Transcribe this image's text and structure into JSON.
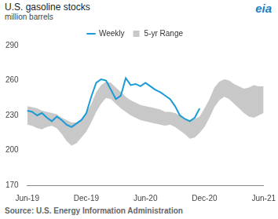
{
  "logo": "eia",
  "chart_data": {
    "type": "line",
    "title": "U.S. gasoline stocks",
    "subtitle": "million barrels",
    "source": "Source: U.S. Energy Information Administration",
    "categories": [
      "Jun-19",
      null,
      null,
      null,
      null,
      null,
      null,
      null,
      null,
      null,
      null,
      null,
      "Dec-19",
      null,
      null,
      null,
      null,
      null,
      null,
      null,
      null,
      null,
      null,
      null,
      "Jun-20",
      null,
      null,
      null,
      null,
      null,
      null,
      null,
      null,
      null,
      null,
      null,
      "Dec-20",
      null,
      null,
      null,
      null,
      null,
      null,
      null,
      null,
      null,
      null,
      null,
      "Jun-21"
    ],
    "series": [
      {
        "name": "5-yr Range",
        "color": "#c8c8c8",
        "type": "area",
        "values": [
          [
            222,
            238
          ],
          [
            221,
            237
          ],
          [
            219,
            236
          ],
          [
            218,
            234
          ],
          [
            220,
            233
          ],
          [
            221,
            232
          ],
          [
            219,
            231
          ],
          [
            214,
            228
          ],
          [
            208,
            226
          ],
          [
            204,
            224
          ],
          [
            206,
            224
          ],
          [
            211,
            227
          ],
          [
            216,
            232
          ],
          [
            224,
            240
          ],
          [
            233,
            250
          ],
          [
            240,
            256
          ],
          [
            245,
            259
          ],
          [
            244,
            258
          ],
          [
            240,
            254
          ],
          [
            236,
            250
          ],
          [
            233,
            246
          ],
          [
            230,
            243
          ],
          [
            228,
            241
          ],
          [
            226,
            239
          ],
          [
            225,
            238
          ],
          [
            224,
            237
          ],
          [
            223,
            236
          ],
          [
            222,
            235
          ],
          [
            221,
            233
          ],
          [
            222,
            233
          ],
          [
            220,
            232
          ],
          [
            217,
            230
          ],
          [
            214,
            227
          ],
          [
            210,
            226
          ],
          [
            211,
            227
          ],
          [
            215,
            229
          ],
          [
            220,
            236
          ],
          [
            228,
            244
          ],
          [
            237,
            254
          ],
          [
            243,
            259
          ],
          [
            246,
            261
          ],
          [
            244,
            260
          ],
          [
            240,
            257
          ],
          [
            236,
            255
          ],
          [
            232,
            253
          ],
          [
            229,
            254
          ],
          [
            228,
            256
          ],
          [
            230,
            255
          ],
          [
            232,
            255
          ]
        ]
      },
      {
        "name": "Weekly",
        "color": "#1a9ad6",
        "type": "line",
        "values": [
          234,
          233,
          230,
          232,
          228,
          225,
          229,
          226,
          222,
          220,
          223,
          226,
          232,
          246,
          258,
          261,
          260,
          252,
          244,
          247,
          262,
          256,
          257,
          255,
          258,
          255,
          252,
          250,
          247,
          244,
          238,
          230,
          227,
          225,
          228,
          236,
          null,
          null,
          null,
          null,
          null,
          null,
          null,
          null,
          null,
          null,
          null,
          null,
          null
        ]
      }
    ],
    "ylim": [
      170,
      290
    ],
    "yticks": [
      170,
      200,
      230,
      260,
      290
    ],
    "grid": false,
    "legend": "top"
  }
}
